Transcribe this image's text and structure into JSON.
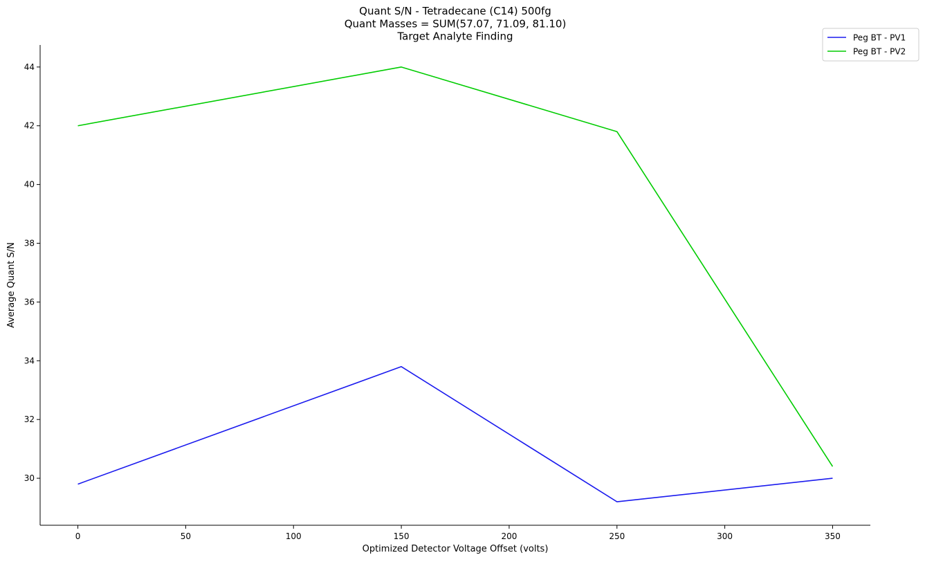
{
  "chart_data": {
    "type": "line",
    "title_lines": [
      "Quant S/N - Tetradecane (C14) 500fg",
      "Quant Masses = SUM(57.07, 71.09, 81.10)",
      "Target Analyte Finding"
    ],
    "xlabel": "Optimized Detector Voltage Offset (volts)",
    "ylabel": "Average Quant S/N",
    "x": [
      0,
      150,
      250,
      350
    ],
    "series": [
      {
        "name": "Peg BT - PV1",
        "color": "#1a1aee",
        "values": [
          29.8,
          33.8,
          29.2,
          30.0
        ]
      },
      {
        "name": "Peg BT - PV2",
        "color": "#00cc00",
        "values": [
          42.0,
          44.0,
          41.8,
          30.4
        ]
      }
    ],
    "xlim": [
      -17.5,
      367.5
    ],
    "ylim": [
      28.4,
      44.75
    ],
    "xticks": [
      0,
      50,
      100,
      150,
      200,
      250,
      300,
      350
    ],
    "yticks": [
      30,
      32,
      34,
      36,
      38,
      40,
      42,
      44
    ],
    "grid": false,
    "legend_position": "top-right"
  }
}
